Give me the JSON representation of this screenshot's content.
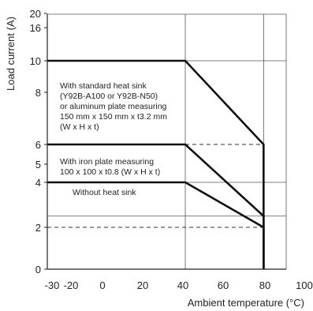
{
  "chart_data": {
    "type": "line",
    "xlabel": "Ambient temperature (°C)",
    "ylabel": "Load current (A)",
    "x_ticks": [
      -30,
      -20,
      0,
      20,
      40,
      60,
      80,
      100
    ],
    "x_tick_labels": [
      "-30",
      "-20",
      "0",
      "20",
      "40",
      "60",
      "80",
      "100"
    ],
    "y_ticks": [
      0,
      2,
      4,
      5,
      6,
      8,
      10,
      16,
      20
    ],
    "y_tick_labels": [
      "0",
      "2",
      "4",
      "5",
      "6",
      "8",
      "10",
      "16",
      "20"
    ],
    "xlim": [
      -30,
      100
    ],
    "grid": true,
    "series": [
      {
        "x": [
          -30,
          40,
          80,
          80
        ],
        "y": [
          10,
          10,
          6,
          0
        ],
        "annotation": [
          "With standard heat sink",
          "(Y92B-A100 or Y92B-N50)",
          "or aluminum plate measuring",
          "150 mm x 150 mm x t3.2 mm",
          "(W x H x t)"
        ]
      },
      {
        "x": [
          -30,
          40,
          80,
          80
        ],
        "y": [
          6,
          6,
          2.5,
          0
        ],
        "annotation": [
          "With iron plate measuring",
          "100 x 100 x t0.8 (W x H x t)"
        ]
      },
      {
        "x": [
          -30,
          40,
          80,
          80
        ],
        "y": [
          4,
          4,
          2,
          0
        ],
        "annotation": [
          "Without heat sink"
        ]
      }
    ],
    "dashed_references": [
      {
        "y": 6,
        "x": [
          40,
          80
        ]
      },
      {
        "y": 2,
        "x": [
          -30,
          80
        ]
      }
    ]
  }
}
